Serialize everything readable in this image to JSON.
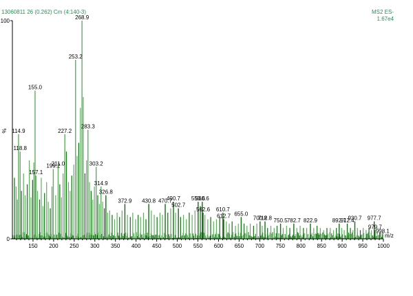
{
  "header": {
    "sample_label": "13060811 26 (0.262) Cm (4:140-3)",
    "scan_mode": "MS2 ES-",
    "intensity": "1.67e4"
  },
  "colors": {
    "header_text": "#2e8b57",
    "peak_dark": "#0f6e0f",
    "peak_light": "#5fae5f",
    "axis": "#000000"
  },
  "chart_data": {
    "type": "bar",
    "title": "",
    "xlabel": "m/z",
    "ylabel": "%",
    "xlim": [
      100,
      1000
    ],
    "ylim": [
      0,
      100
    ],
    "x_ticks": [
      150,
      200,
      250,
      300,
      350,
      400,
      450,
      500,
      550,
      600,
      650,
      700,
      750,
      800,
      850,
      900,
      950,
      1000
    ],
    "y_ticks": [
      0,
      100
    ],
    "y_tick_labels": [
      "0",
      "100"
    ],
    "labeled_peaks": [
      {
        "mz": 114.9,
        "intensity": 48,
        "label": "114.9"
      },
      {
        "mz": 118.8,
        "intensity": 40,
        "label": "118.8"
      },
      {
        "mz": 155.0,
        "intensity": 68,
        "label": "155.0"
      },
      {
        "mz": 157.1,
        "intensity": 29,
        "label": "157.1"
      },
      {
        "mz": 199.2,
        "intensity": 32,
        "label": "199.2"
      },
      {
        "mz": 211.0,
        "intensity": 33,
        "label": "211.0"
      },
      {
        "mz": 227.2,
        "intensity": 48,
        "label": "227.2"
      },
      {
        "mz": 253.2,
        "intensity": 82,
        "label": "253.2"
      },
      {
        "mz": 268.9,
        "intensity": 100,
        "label": "268.9"
      },
      {
        "mz": 283.3,
        "intensity": 50,
        "label": "283.3"
      },
      {
        "mz": 303.2,
        "intensity": 33,
        "label": "303.2"
      },
      {
        "mz": 314.9,
        "intensity": 24,
        "label": "314.9"
      },
      {
        "mz": 326.8,
        "intensity": 20,
        "label": "326.8"
      },
      {
        "mz": 372.9,
        "intensity": 16,
        "label": "372.9"
      },
      {
        "mz": 430.8,
        "intensity": 16,
        "label": "430.8"
      },
      {
        "mz": 470.7,
        "intensity": 16,
        "label": "470.7"
      },
      {
        "mz": 490.7,
        "intensity": 17,
        "label": "490.7"
      },
      {
        "mz": 502.7,
        "intensity": 14,
        "label": "502.7"
      },
      {
        "mz": 550.6,
        "intensity": 17,
        "label": "550.6"
      },
      {
        "mz": 560.6,
        "intensity": 17,
        "label": "560.6"
      },
      {
        "mz": 562.6,
        "intensity": 12,
        "label": "562.6"
      },
      {
        "mz": 610.7,
        "intensity": 12,
        "label": "610.7"
      },
      {
        "mz": 612.7,
        "intensity": 9,
        "label": "612.7"
      },
      {
        "mz": 655.0,
        "intensity": 10,
        "label": "655.0"
      },
      {
        "mz": 700.8,
        "intensity": 8,
        "label": "700.8"
      },
      {
        "mz": 712.8,
        "intensity": 8,
        "label": "712.8"
      },
      {
        "mz": 750.5,
        "intensity": 7,
        "label": "750.5"
      },
      {
        "mz": 782.7,
        "intensity": 7,
        "label": "782.7"
      },
      {
        "mz": 822.9,
        "intensity": 7,
        "label": "822.9"
      },
      {
        "mz": 892.7,
        "intensity": 7,
        "label": "892.7"
      },
      {
        "mz": 912.4,
        "intensity": 7,
        "label": "912.4"
      },
      {
        "mz": 930.7,
        "intensity": 8,
        "label": "930.7"
      },
      {
        "mz": 977.7,
        "intensity": 8,
        "label": "977.7"
      },
      {
        "mz": 979.7,
        "intensity": 4,
        "label": "979.7"
      },
      {
        "mz": 998.1,
        "intensity": 2,
        "label": "998.1"
      }
    ],
    "unlabeled_peaks": [
      {
        "mz": 105,
        "intensity": 28
      },
      {
        "mz": 109,
        "intensity": 24
      },
      {
        "mz": 112,
        "intensity": 18
      },
      {
        "mz": 122,
        "intensity": 22
      },
      {
        "mz": 127,
        "intensity": 30
      },
      {
        "mz": 131,
        "intensity": 20
      },
      {
        "mz": 136,
        "intensity": 25
      },
      {
        "mz": 141,
        "intensity": 36
      },
      {
        "mz": 145,
        "intensity": 19
      },
      {
        "mz": 149,
        "intensity": 27
      },
      {
        "mz": 152,
        "intensity": 35
      },
      {
        "mz": 161,
        "intensity": 22
      },
      {
        "mz": 166,
        "intensity": 18
      },
      {
        "mz": 170,
        "intensity": 28
      },
      {
        "mz": 174,
        "intensity": 15
      },
      {
        "mz": 178,
        "intensity": 21
      },
      {
        "mz": 183,
        "intensity": 26
      },
      {
        "mz": 187,
        "intensity": 17
      },
      {
        "mz": 192,
        "intensity": 14
      },
      {
        "mz": 196,
        "intensity": 24
      },
      {
        "mz": 205,
        "intensity": 20
      },
      {
        "mz": 215,
        "intensity": 25
      },
      {
        "mz": 219,
        "intensity": 19
      },
      {
        "mz": 223,
        "intensity": 30
      },
      {
        "mz": 231,
        "intensity": 40
      },
      {
        "mz": 236,
        "intensity": 26
      },
      {
        "mz": 240,
        "intensity": 22
      },
      {
        "mz": 244,
        "intensity": 29
      },
      {
        "mz": 249,
        "intensity": 34
      },
      {
        "mz": 257,
        "intensity": 38
      },
      {
        "mz": 261,
        "intensity": 44
      },
      {
        "mz": 265,
        "intensity": 60
      },
      {
        "mz": 272,
        "intensity": 65
      },
      {
        "mz": 276,
        "intensity": 30
      },
      {
        "mz": 280,
        "intensity": 36
      },
      {
        "mz": 287,
        "intensity": 26
      },
      {
        "mz": 291,
        "intensity": 22
      },
      {
        "mz": 295,
        "intensity": 18
      },
      {
        "mz": 299,
        "intensity": 24
      },
      {
        "mz": 307,
        "intensity": 20
      },
      {
        "mz": 311,
        "intensity": 16
      },
      {
        "mz": 319,
        "intensity": 17
      },
      {
        "mz": 323,
        "intensity": 14
      },
      {
        "mz": 331,
        "intensity": 12
      },
      {
        "mz": 336,
        "intensity": 13
      },
      {
        "mz": 342,
        "intensity": 11
      },
      {
        "mz": 348,
        "intensity": 9
      },
      {
        "mz": 354,
        "intensity": 12
      },
      {
        "mz": 360,
        "intensity": 10
      },
      {
        "mz": 366,
        "intensity": 13
      },
      {
        "mz": 379,
        "intensity": 11
      },
      {
        "mz": 386,
        "intensity": 10
      },
      {
        "mz": 392,
        "intensity": 12
      },
      {
        "mz": 399,
        "intensity": 9
      },
      {
        "mz": 405,
        "intensity": 11
      },
      {
        "mz": 411,
        "intensity": 10
      },
      {
        "mz": 418,
        "intensity": 12
      },
      {
        "mz": 424,
        "intensity": 9
      },
      {
        "mz": 437,
        "intensity": 13
      },
      {
        "mz": 444,
        "intensity": 11
      },
      {
        "mz": 451,
        "intensity": 10
      },
      {
        "mz": 458,
        "intensity": 12
      },
      {
        "mz": 464,
        "intensity": 11
      },
      {
        "mz": 477,
        "intensity": 12
      },
      {
        "mz": 484,
        "intensity": 14
      },
      {
        "mz": 496,
        "intensity": 12
      },
      {
        "mz": 508,
        "intensity": 10
      },
      {
        "mz": 515,
        "intensity": 11
      },
      {
        "mz": 522,
        "intensity": 9
      },
      {
        "mz": 529,
        "intensity": 12
      },
      {
        "mz": 536,
        "intensity": 11
      },
      {
        "mz": 543,
        "intensity": 13
      },
      {
        "mz": 556,
        "intensity": 15
      },
      {
        "mz": 567,
        "intensity": 11
      },
      {
        "mz": 574,
        "intensity": 9
      },
      {
        "mz": 581,
        "intensity": 10
      },
      {
        "mz": 588,
        "intensity": 8
      },
      {
        "mz": 595,
        "intensity": 9
      },
      {
        "mz": 603,
        "intensity": 10
      },
      {
        "mz": 619,
        "intensity": 8
      },
      {
        "mz": 626,
        "intensity": 7
      },
      {
        "mz": 633,
        "intensity": 8
      },
      {
        "mz": 641,
        "intensity": 6
      },
      {
        "mz": 648,
        "intensity": 7
      },
      {
        "mz": 662,
        "intensity": 7
      },
      {
        "mz": 669,
        "intensity": 6
      },
      {
        "mz": 677,
        "intensity": 7
      },
      {
        "mz": 685,
        "intensity": 6
      },
      {
        "mz": 693,
        "intensity": 7
      },
      {
        "mz": 706,
        "intensity": 6
      },
      {
        "mz": 719,
        "intensity": 5
      },
      {
        "mz": 727,
        "intensity": 6
      },
      {
        "mz": 735,
        "intensity": 5
      },
      {
        "mz": 742,
        "intensity": 6
      },
      {
        "mz": 757,
        "intensity": 5
      },
      {
        "mz": 765,
        "intensity": 6
      },
      {
        "mz": 773,
        "intensity": 5
      },
      {
        "mz": 790,
        "intensity": 5
      },
      {
        "mz": 798,
        "intensity": 6
      },
      {
        "mz": 806,
        "intensity": 5
      },
      {
        "mz": 814,
        "intensity": 5
      },
      {
        "mz": 831,
        "intensity": 5
      },
      {
        "mz": 839,
        "intensity": 6
      },
      {
        "mz": 847,
        "intensity": 5
      },
      {
        "mz": 855,
        "intensity": 4
      },
      {
        "mz": 863,
        "intensity": 5
      },
      {
        "mz": 871,
        "intensity": 5
      },
      {
        "mz": 879,
        "intensity": 4
      },
      {
        "mz": 886,
        "intensity": 5
      },
      {
        "mz": 899,
        "intensity": 5
      },
      {
        "mz": 905,
        "intensity": 4
      },
      {
        "mz": 920,
        "intensity": 5
      },
      {
        "mz": 926,
        "intensity": 4
      },
      {
        "mz": 937,
        "intensity": 5
      },
      {
        "mz": 944,
        "intensity": 4
      },
      {
        "mz": 951,
        "intensity": 5
      },
      {
        "mz": 958,
        "intensity": 4
      },
      {
        "mz": 965,
        "intensity": 5
      },
      {
        "mz": 971,
        "intensity": 4
      },
      {
        "mz": 985,
        "intensity": 3
      },
      {
        "mz": 991,
        "intensity": 3
      }
    ]
  }
}
